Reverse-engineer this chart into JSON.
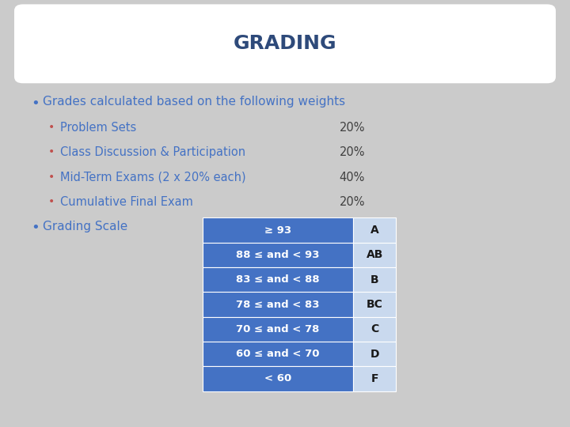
{
  "title": "GRADING",
  "title_color": "#2E4A7A",
  "background_color": "#CBCBCB",
  "title_box_color": "#FFFFFF",
  "bullet_color_main": "#4472C4",
  "bullet_color_sub": "#C0504D",
  "main_text_color": "#4472C4",
  "sub_text_color": "#4472C4",
  "pct_text_color": "#404040",
  "main_bullet": "Grades calculated based on the following weights",
  "sub_bullets": [
    [
      "Problem Sets",
      "20%"
    ],
    [
      "Class Discussion & Participation",
      "20%"
    ],
    [
      "Mid-Term Exams (2 x 20% each)",
      "40%"
    ],
    [
      "Cumulative Final Exam",
      "20%"
    ]
  ],
  "grading_scale_label": "Grading Scale",
  "scale_rows": [
    [
      "≥ 93",
      "A"
    ],
    [
      "88 ≤ and < 93",
      "AB"
    ],
    [
      "83 ≤ and < 88",
      "B"
    ],
    [
      "78 ≤ and < 83",
      "BC"
    ],
    [
      "70 ≤ and < 78",
      "C"
    ],
    [
      "60 ≤ and < 70",
      "D"
    ],
    [
      "< 60",
      "F"
    ]
  ],
  "table_bg_dark": "#4472C4",
  "table_grade_bg": "#C9D9EE",
  "table_text_white": "#FFFFFF",
  "table_text_black": "#1A1A1A"
}
